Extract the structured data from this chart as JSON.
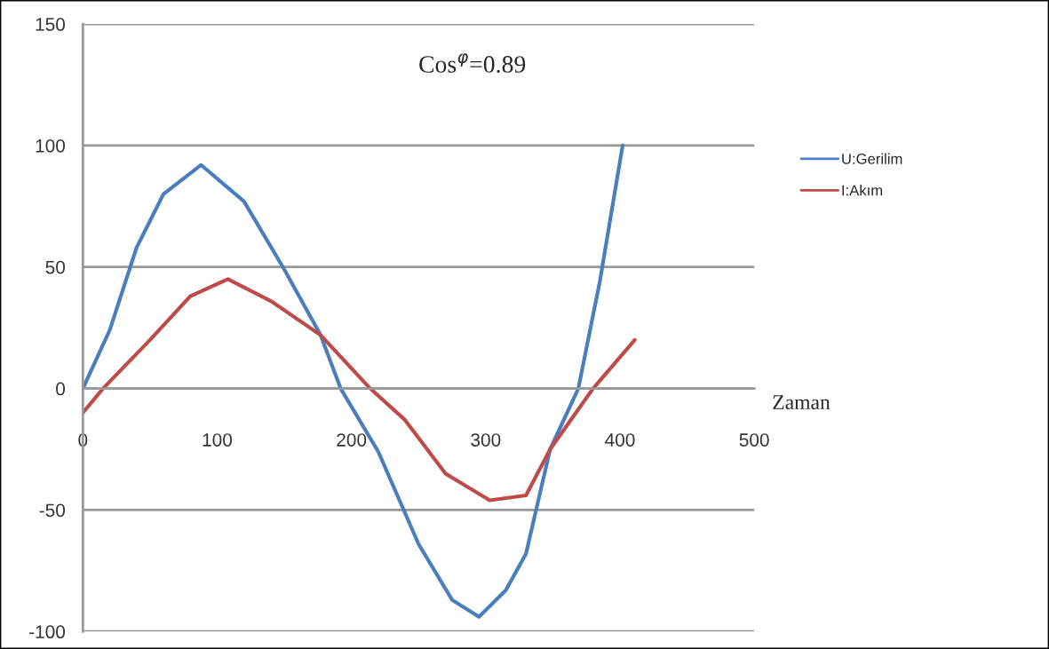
{
  "chart_data": {
    "type": "line",
    "title": "Cos$^{φ}$=0.89",
    "xlabel": "Zaman",
    "xlim": [
      0,
      500
    ],
    "xticks": [
      0,
      100,
      200,
      300,
      400,
      500
    ],
    "ylim": [
      -100,
      150
    ],
    "yticks": [
      -100,
      -50,
      0,
      50,
      100,
      150
    ],
    "grid": "y",
    "legend": "right",
    "marker": "none",
    "line_style": "solid",
    "series": [
      {
        "name": "U:Gerilim",
        "color": "#4a7ebf",
        "x": [
          0,
          20,
          40,
          60,
          88,
          120,
          150,
          177,
          192,
          220,
          250,
          275,
          295,
          315,
          330,
          348,
          369,
          385,
          402
        ],
        "values": [
          0,
          24,
          58,
          80,
          92,
          77,
          49,
          22,
          0,
          -26,
          -64,
          -87,
          -94,
          -83,
          -68,
          -25,
          0,
          44,
          100
        ]
      },
      {
        "name": "I:Akım",
        "color": "#be4b48",
        "x": [
          0,
          15,
          50,
          80,
          108,
          140,
          177,
          214,
          240,
          270,
          303,
          330,
          348,
          380,
          411
        ],
        "values": [
          -10,
          0,
          20,
          38,
          45,
          36,
          22,
          0,
          -13,
          -35,
          -46,
          -44,
          -25,
          0,
          20
        ]
      }
    ]
  }
}
